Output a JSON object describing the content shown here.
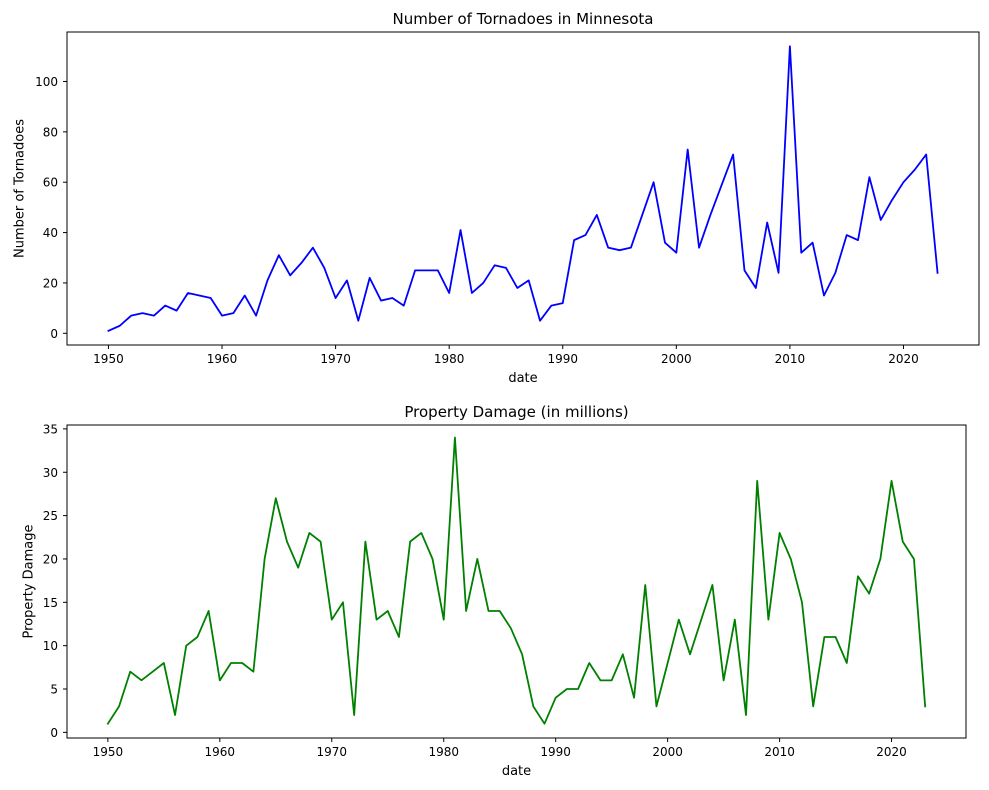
{
  "chart_data": [
    {
      "type": "line",
      "title": "Number of Tornadoes in Minnesota",
      "xlabel": "date",
      "ylabel": "Number of Tornadoes",
      "xlim": [
        1946.35,
        2026.65
      ],
      "ylim": [
        -4.65,
        119.65
      ],
      "xticks": [
        1950,
        1960,
        1970,
        1980,
        1990,
        2000,
        2010,
        2020
      ],
      "yticks": [
        0,
        20,
        40,
        60,
        80,
        100
      ],
      "grid": false,
      "series": [
        {
          "color": "#0000ff",
          "x": [
            1950,
            1951,
            1952,
            1953,
            1954,
            1955,
            1956,
            1957,
            1958,
            1959,
            1960,
            1961,
            1962,
            1963,
            1964,
            1965,
            1966,
            1967,
            1968,
            1969,
            1970,
            1971,
            1972,
            1973,
            1974,
            1975,
            1976,
            1977,
            1978,
            1979,
            1980,
            1981,
            1982,
            1983,
            1984,
            1985,
            1986,
            1987,
            1988,
            1989,
            1990,
            1991,
            1992,
            1993,
            1994,
            1995,
            1996,
            1997,
            1998,
            1999,
            2000,
            2001,
            2002,
            2003,
            2004,
            2005,
            2006,
            2007,
            2008,
            2009,
            2010,
            2011,
            2012,
            2013,
            2014,
            2015,
            2016,
            2017,
            2018,
            2019,
            2020,
            2021,
            2022,
            2023
          ],
          "y": [
            1,
            3,
            7,
            8,
            7,
            11,
            9,
            16,
            15,
            14,
            7,
            8,
            15,
            7,
            21,
            31,
            23,
            28,
            34,
            26,
            14,
            21,
            5,
            22,
            13,
            14,
            11,
            25,
            25,
            25,
            16,
            41,
            16,
            20,
            27,
            26,
            18,
            21,
            5,
            11,
            12,
            37,
            39,
            47,
            34,
            33,
            34,
            47,
            60,
            36,
            32,
            73,
            34,
            47,
            59,
            71,
            25,
            18,
            44,
            24,
            114,
            32,
            36,
            15,
            24,
            39,
            37,
            62,
            45,
            53,
            60,
            65,
            71,
            24
          ]
        }
      ]
    },
    {
      "type": "line",
      "title": "Property Damage (in millions)",
      "xlabel": "date",
      "ylabel": "Property Damage",
      "xlim": [
        1946.35,
        2026.65
      ],
      "ylim": [
        -0.65,
        35.45
      ],
      "xticks": [
        1950,
        1960,
        1970,
        1980,
        1990,
        2000,
        2010,
        2020
      ],
      "yticks": [
        0,
        5,
        10,
        15,
        20,
        25,
        30,
        35
      ],
      "grid": false,
      "series": [
        {
          "color": "#008000",
          "x": [
            1950,
            1951,
            1952,
            1953,
            1954,
            1955,
            1956,
            1957,
            1958,
            1959,
            1960,
            1961,
            1962,
            1963,
            1964,
            1965,
            1966,
            1967,
            1968,
            1969,
            1970,
            1971,
            1972,
            1973,
            1974,
            1975,
            1976,
            1977,
            1978,
            1979,
            1980,
            1981,
            1982,
            1983,
            1984,
            1985,
            1986,
            1987,
            1988,
            1989,
            1990,
            1991,
            1992,
            1993,
            1994,
            1995,
            1996,
            1997,
            1998,
            1999,
            2000,
            2001,
            2002,
            2003,
            2004,
            2005,
            2006,
            2007,
            2008,
            2009,
            2010,
            2011,
            2012,
            2013,
            2014,
            2015,
            2016,
            2017,
            2018,
            2019,
            2020,
            2021,
            2022,
            2023
          ],
          "y": [
            1,
            3,
            7,
            6,
            7,
            8,
            2,
            10,
            11,
            14,
            6,
            8,
            8,
            7,
            20,
            27,
            22,
            19,
            23,
            22,
            13,
            15,
            2,
            22,
            13,
            14,
            11,
            22,
            23,
            20,
            13,
            34,
            14,
            20,
            14,
            14,
            12,
            9,
            3,
            1,
            4,
            5,
            5,
            8,
            6,
            6,
            9,
            4,
            17,
            3,
            8,
            13,
            9,
            13,
            17,
            6,
            13,
            2,
            29,
            13,
            23,
            20,
            15,
            3,
            11,
            11,
            8,
            18,
            16,
            20,
            29,
            22,
            20,
            3
          ]
        }
      ]
    }
  ]
}
